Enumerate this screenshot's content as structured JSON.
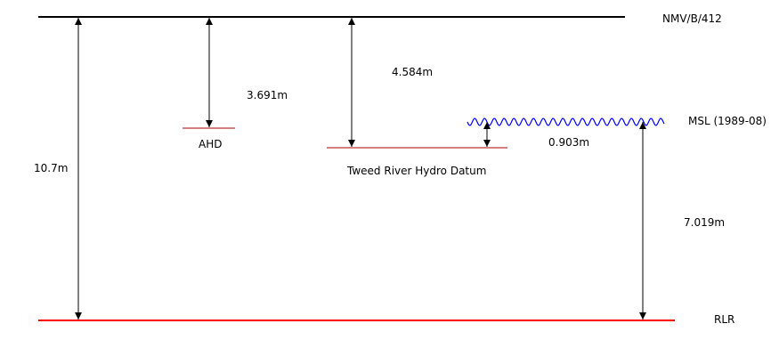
{
  "datums": {
    "nmv": "NMV/B/412",
    "ahd": "AHD",
    "tweed": "Tweed River Hydro Datum",
    "msl": "MSL (1989-08)",
    "rlr": "RLR"
  },
  "distances": {
    "nmv_to_rlr": "10.7m",
    "nmv_to_ahd": "3.691m",
    "nmv_to_tweed": "4.584m",
    "tweed_to_msl": "0.903m",
    "msl_to_rlr": "7.019m"
  },
  "colors": {
    "nmv_line": "#000000",
    "rlr_line": "#ff0000",
    "datum_line": "#aa0000",
    "msl_wave": "#0000ff",
    "arrow": "#000000"
  }
}
